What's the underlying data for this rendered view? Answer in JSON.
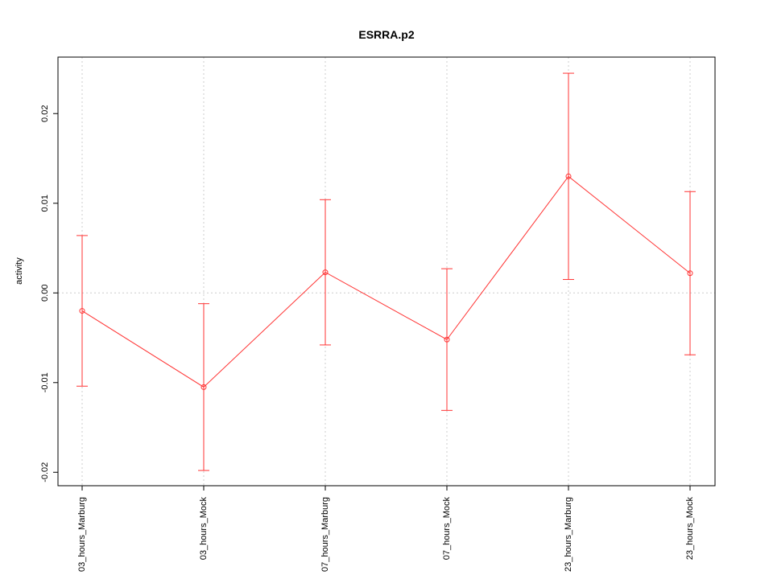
{
  "chart_data": {
    "type": "line",
    "title": "ESRRA.p2",
    "ylabel": "activity",
    "categories": [
      "03_hours_Marburg",
      "03_hours_Mock",
      "07_hours_Marburg",
      "07_hours_Mock",
      "23_hours_Marburg",
      "23_hours_Mock"
    ],
    "series": [
      {
        "name": "activity",
        "color": "#ff3333",
        "values": [
          -0.002,
          -0.0105,
          0.0023,
          -0.0052,
          0.013,
          0.0022
        ],
        "errors": [
          0.0084,
          0.0093,
          0.0081,
          0.0079,
          0.0115,
          0.0091
        ]
      }
    ],
    "ylim": [
      -0.0215,
      0.0263
    ],
    "yticks": [
      -0.02,
      -0.01,
      {
        "value": 0,
        "label": "0.00"
      },
      0.01,
      0.02
    ],
    "hline": 0,
    "grid": true
  }
}
